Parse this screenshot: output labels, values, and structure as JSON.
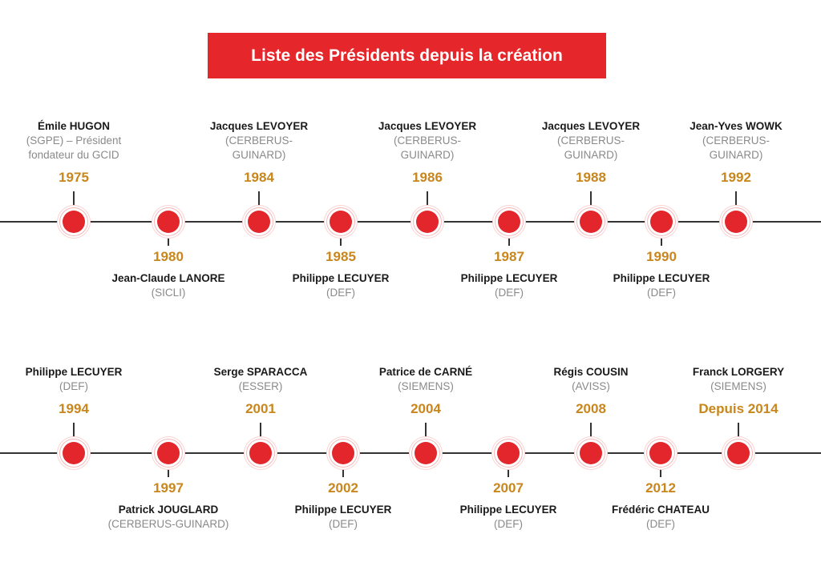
{
  "title": "Liste des Présidents depuis la création",
  "colors": {
    "accent": "#e5262a",
    "year": "#c8861c",
    "name": "#1a1a1a",
    "company": "#8a8a8a"
  },
  "rows": [
    {
      "items": [
        {
          "name": "Émile HUGON",
          "company": "(SGPE) – Président\nfondateur du GCID",
          "year": "1975",
          "side": "top"
        },
        {
          "name": "Jean-Claude LANORE",
          "company": "(SICLI)",
          "year": "1980",
          "side": "bottom"
        },
        {
          "name": "Jacques LEVOYER",
          "company": "(CERBERUS-\nGUINARD)",
          "year": "1984",
          "side": "top"
        },
        {
          "name": "Philippe LECUYER",
          "company": "(DEF)",
          "year": "1985",
          "side": "bottom"
        },
        {
          "name": "Jacques LEVOYER",
          "company": "(CERBERUS-\nGUINARD)",
          "year": "1986",
          "side": "top"
        },
        {
          "name": "Philippe LECUYER",
          "company": "(DEF)",
          "year": "1987",
          "side": "bottom"
        },
        {
          "name": "Jacques LEVOYER",
          "company": "(CERBERUS-\nGUINARD)",
          "year": "1988",
          "side": "top"
        },
        {
          "name": "Philippe LECUYER",
          "company": "(DEF)",
          "year": "1990",
          "side": "bottom"
        },
        {
          "name": "Jean-Yves WOWK",
          "company": "(CERBERUS-\nGUINARD)",
          "year": "1992",
          "side": "top"
        }
      ]
    },
    {
      "items": [
        {
          "name": "Philippe LECUYER",
          "company": "(DEF)",
          "year": "1994",
          "side": "top"
        },
        {
          "name": "Patrick JOUGLARD",
          "company": "(CERBERUS-GUINARD)",
          "year": "1997",
          "side": "bottom"
        },
        {
          "name": "Serge SPARACCA",
          "company": "(ESSER)",
          "year": "2001",
          "side": "top"
        },
        {
          "name": "Philippe LECUYER",
          "company": "(DEF)",
          "year": "2002",
          "side": "bottom"
        },
        {
          "name": "Patrice de CARNÉ",
          "company": "(SIEMENS)",
          "year": "2004",
          "side": "top"
        },
        {
          "name": "Philippe LECUYER",
          "company": "(DEF)",
          "year": "2007",
          "side": "bottom"
        },
        {
          "name": "Régis COUSIN",
          "company": "(AVISS)",
          "year": "2008",
          "side": "top"
        },
        {
          "name": "Frédéric CHATEAU",
          "company": "(DEF)",
          "year": "2012",
          "side": "bottom"
        },
        {
          "name": "Franck LORGERY",
          "company": "(SIEMENS)",
          "year": "Depuis 2014",
          "side": "top"
        }
      ]
    }
  ]
}
